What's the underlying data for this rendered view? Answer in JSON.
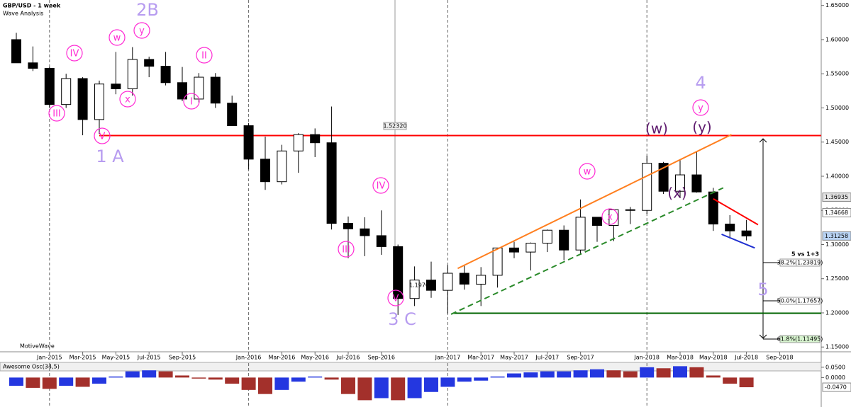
{
  "chart_data": {
    "type": "candlestick",
    "title": "GBP/USD - 1 week",
    "subtitle": "Wave Analysis",
    "watermark": "MotiveWave",
    "categories": [
      null,
      null,
      "Jan-2015",
      null,
      "Mar-2015",
      null,
      "May-2015",
      null,
      "Jul-2015",
      null,
      "Sep-2015",
      null,
      null,
      null,
      "Jan-2016",
      null,
      "Mar-2016",
      null,
      "May-2016",
      null,
      "Jul-2016",
      null,
      "Sep-2016",
      null,
      null,
      null,
      "Jan-2017",
      null,
      "Mar-2017",
      null,
      "May-2017",
      null,
      "Jul-2017",
      null,
      "Sep-2017",
      null,
      null,
      null,
      "Jan-2018",
      null,
      "Mar-2018",
      null,
      "May-2018",
      null,
      "Jul-2018",
      null,
      "Sep-2018"
    ],
    "ohlc": [
      [
        1.6,
        1.61,
        1.566,
        1.566
      ],
      [
        1.566,
        1.59,
        1.554,
        1.558
      ],
      [
        1.558,
        1.56,
        1.5,
        1.505
      ],
      [
        1.505,
        1.55,
        1.5,
        1.543
      ],
      [
        1.543,
        1.545,
        1.46,
        1.483
      ],
      [
        1.483,
        1.54,
        1.462,
        1.535
      ],
      [
        1.535,
        1.582,
        1.52,
        1.528
      ],
      [
        1.528,
        1.589,
        1.518,
        1.571
      ],
      [
        1.571,
        1.575,
        1.545,
        1.561
      ],
      [
        1.561,
        1.582,
        1.533,
        1.537
      ],
      [
        1.537,
        1.56,
        1.51,
        1.513
      ],
      [
        1.513,
        1.551,
        1.508,
        1.545
      ],
      [
        1.545,
        1.551,
        1.5,
        1.507
      ],
      [
        1.507,
        1.518,
        1.474,
        1.474
      ],
      [
        1.474,
        1.478,
        1.41,
        1.425
      ],
      [
        1.425,
        1.458,
        1.38,
        1.392
      ],
      [
        1.392,
        1.446,
        1.388,
        1.437
      ],
      [
        1.437,
        1.463,
        1.405,
        1.461
      ],
      [
        1.461,
        1.47,
        1.428,
        1.449
      ],
      [
        1.449,
        1.502,
        1.322,
        1.331
      ],
      [
        1.331,
        1.341,
        1.28,
        1.323
      ],
      [
        1.323,
        1.34,
        1.283,
        1.313
      ],
      [
        1.313,
        1.35,
        1.285,
        1.297
      ],
      [
        1.297,
        1.3,
        1.197,
        1.221
      ],
      [
        1.221,
        1.268,
        1.21,
        1.248
      ],
      [
        1.248,
        1.275,
        1.222,
        1.233
      ],
      [
        1.233,
        1.27,
        1.199,
        1.258
      ],
      [
        1.258,
        1.27,
        1.234,
        1.242
      ],
      [
        1.242,
        1.267,
        1.21,
        1.255
      ],
      [
        1.255,
        1.291,
        1.237,
        1.295
      ],
      [
        1.295,
        1.304,
        1.28,
        1.289
      ],
      [
        1.289,
        1.303,
        1.262,
        1.302
      ],
      [
        1.302,
        1.322,
        1.289,
        1.321
      ],
      [
        1.321,
        1.328,
        1.277,
        1.292
      ],
      [
        1.292,
        1.366,
        1.285,
        1.34
      ],
      [
        1.34,
        1.34,
        1.304,
        1.328
      ],
      [
        1.328,
        1.352,
        1.305,
        1.351
      ],
      [
        1.351,
        1.355,
        1.33,
        1.35
      ],
      [
        1.35,
        1.43,
        1.345,
        1.419
      ],
      [
        1.419,
        1.421,
        1.374,
        1.378
      ],
      [
        1.378,
        1.424,
        1.368,
        1.402
      ],
      [
        1.402,
        1.437,
        1.376,
        1.377
      ],
      [
        1.377,
        1.383,
        1.32,
        1.33
      ],
      [
        1.33,
        1.343,
        1.309,
        1.32
      ],
      [
        1.32,
        1.336,
        1.306,
        1.31258
      ],
      null,
      null
    ],
    "up_color": "#ffffff",
    "down_color": "#000000",
    "ylim": [
      1.143,
      1.658
    ],
    "yticks": [
      {
        "value": 1.15,
        "label": "1.15000"
      },
      {
        "value": 1.2,
        "label": "1.20000"
      },
      {
        "value": 1.25,
        "label": "1.25000"
      },
      {
        "value": 1.3,
        "label": "1.30000"
      },
      {
        "value": 1.35,
        "label": "1.35000"
      },
      {
        "value": 1.4,
        "label": "1.40000"
      },
      {
        "value": 1.45,
        "label": "1.45000"
      },
      {
        "value": 1.5,
        "label": "1.50000"
      },
      {
        "value": 1.55,
        "label": "1.55000"
      },
      {
        "value": 1.6,
        "label": "1.60000"
      },
      {
        "value": 1.65,
        "label": "1.65000"
      }
    ],
    "price_tags": [
      {
        "value": 1.36935,
        "color": "#e4e4e4"
      },
      {
        "value": 1.34668,
        "color": "#ffffff"
      },
      {
        "value": 1.31258,
        "color": "#b9d3f3"
      }
    ],
    "levels": [
      {
        "value": 1.4595,
        "color": "#ff0000",
        "from": 5
      },
      {
        "value": 1.1995,
        "color": "#006400",
        "from": 26.3
      }
    ],
    "trendlines": [
      {
        "color": "#ff7f1f",
        "dash": false,
        "points": [
          [
            26.6,
            1.265
          ],
          [
            43.1,
            1.461
          ]
        ]
      },
      {
        "color": "#2a8a2a",
        "dash": true,
        "points": [
          [
            26.2,
            1.198
          ],
          [
            42.6,
            1.383
          ]
        ]
      },
      {
        "color": "#ff0000",
        "dash": false,
        "points": [
          [
            42.0,
            1.367
          ],
          [
            44.7,
            1.329
          ]
        ]
      },
      {
        "color": "#1f2fd0",
        "dash": false,
        "points": [
          [
            42.5,
            1.315
          ],
          [
            44.5,
            1.295
          ]
        ]
      }
    ],
    "annotations": [
      {
        "text": "2B",
        "style": "wave"
      },
      {
        "text": "1 A",
        "style": "wave"
      },
      {
        "text": "3 C",
        "style": "wave"
      },
      {
        "text": "4",
        "style": "wave"
      },
      {
        "text": "5",
        "style": "wave"
      },
      {
        "text": "w",
        "style": "circle"
      },
      {
        "text": "y",
        "style": "circle"
      },
      {
        "text": "IV",
        "style": "circle"
      },
      {
        "text": "II",
        "style": "circle"
      },
      {
        "text": "x",
        "style": "circle"
      },
      {
        "text": "I",
        "style": "circle"
      },
      {
        "text": "III",
        "style": "circle"
      },
      {
        "text": "V",
        "style": "circle"
      },
      {
        "text": "IV",
        "style": "circle"
      },
      {
        "text": "III",
        "style": "circle"
      },
      {
        "text": "V",
        "style": "circle"
      },
      {
        "text": "w",
        "style": "circle"
      },
      {
        "text": "x",
        "style": "circle"
      },
      {
        "text": "y",
        "style": "circle"
      },
      {
        "text": "(w)",
        "style": "paren"
      },
      {
        "text": "(y)",
        "style": "paren"
      },
      {
        "text": "(x)",
        "style": "paren"
      },
      {
        "text": "1.52320",
        "style": "tag"
      },
      {
        "text": "1.19702",
        "style": "small"
      }
    ],
    "fib_title": "5 vs 1+3",
    "fib_labels": [
      "38.2%(1.23819)",
      "50.0%(1.17657)",
      "61.8%(1.11495)"
    ],
    "oscillator": {
      "type": "bar",
      "title": "Awesome Osc(34,5)",
      "values": [
        -0.04,
        -0.05,
        -0.055,
        -0.04,
        -0.045,
        -0.03,
        0.005,
        0.03,
        0.035,
        0.03,
        0.01,
        -0.005,
        -0.01,
        -0.03,
        -0.06,
        -0.08,
        -0.06,
        -0.02,
        0.005,
        -0.01,
        -0.08,
        -0.11,
        -0.1,
        -0.11,
        -0.1,
        -0.07,
        -0.045,
        -0.02,
        -0.015,
        0.005,
        0.02,
        0.025,
        0.03,
        0.03,
        0.035,
        0.04,
        0.035,
        0.03,
        0.05,
        0.045,
        0.055,
        0.05,
        0.01,
        -0.03,
        -0.047,
        null,
        null
      ],
      "up_color": "#2437e0",
      "down_color": "#a3302b",
      "ylim": [
        -0.143,
        0.07
      ],
      "yticks": [
        {
          "value": 0.05,
          "label": "0.0500"
        },
        {
          "value": 0,
          "label": "0.0000"
        }
      ],
      "last_tag": {
        "value": -0.047,
        "label": "-0.0470"
      }
    }
  }
}
